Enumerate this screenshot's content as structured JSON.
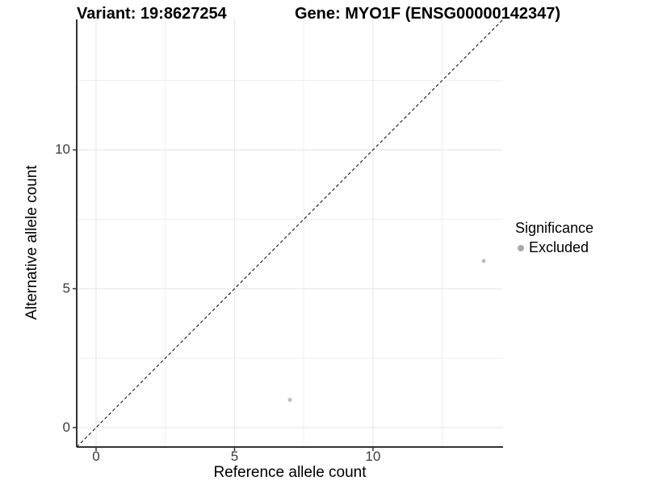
{
  "header": {
    "variant_title": "Variant: 19:8627254",
    "gene_title": "Gene: MYO1F (ENSG00000142347)"
  },
  "chart_data": {
    "type": "scatter",
    "title_variant": "Variant: 19:8627254",
    "title_gene": "Gene: MYO1F (ENSG00000142347)",
    "xlabel": "Reference allele count",
    "ylabel": "Alternative allele count",
    "xlim": [
      -0.7,
      14.7
    ],
    "ylim": [
      -0.7,
      14.7
    ],
    "x_ticks": [
      0,
      5,
      10
    ],
    "y_ticks": [
      0,
      5,
      10
    ],
    "x_minor_ticks": [
      2.5,
      7.5,
      12.5
    ],
    "y_minor_ticks": [
      2.5,
      7.5,
      12.5
    ],
    "grid": true,
    "grid_major_color": "#e4e4e4",
    "grid_minor_color": "#efefef",
    "axis_line_color": "#333333",
    "tick_label_color": "#3a3a3a",
    "identity_line": {
      "style": "dashed",
      "color": "#000000",
      "dash": "4 3"
    },
    "series": [
      {
        "name": "Excluded",
        "color": "#bdbdbd",
        "points": [
          {
            "x": 7,
            "y": 1
          },
          {
            "x": 14,
            "y": 6
          }
        ]
      }
    ],
    "legend": {
      "title": "Significance",
      "position": "right",
      "key_color": "#a8a8a8"
    }
  }
}
